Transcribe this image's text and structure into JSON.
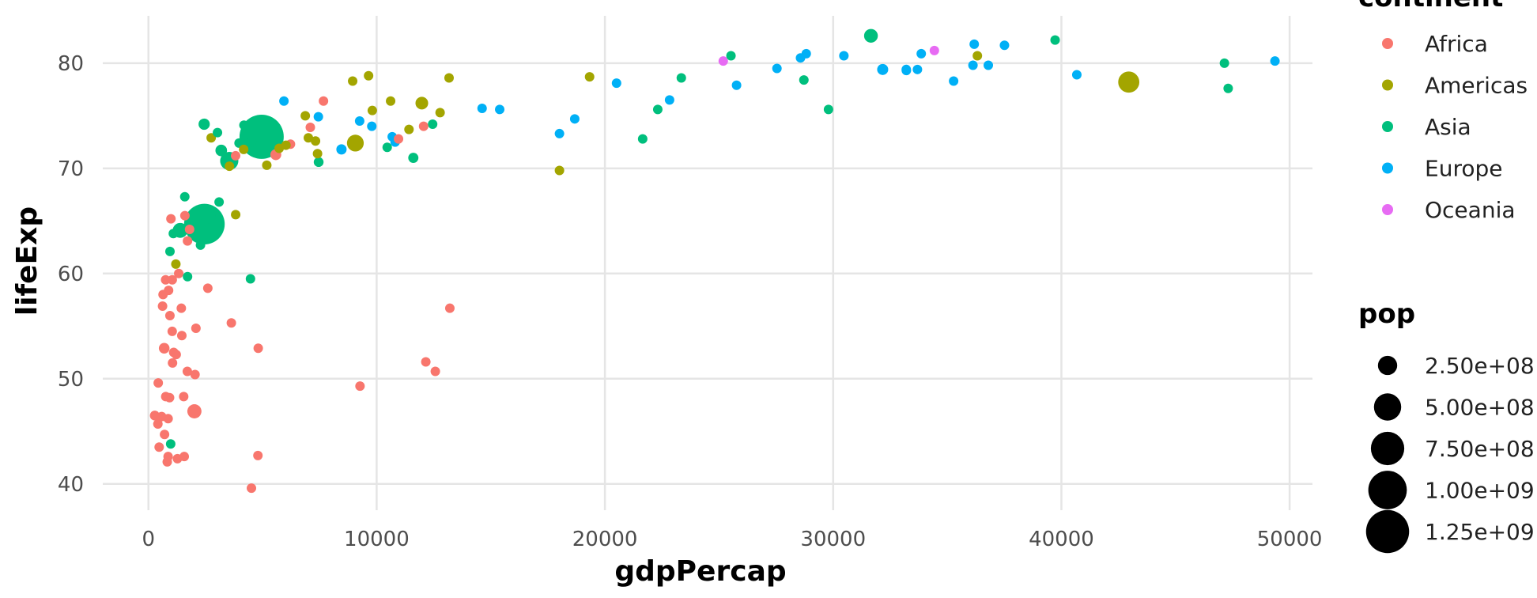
{
  "chart_data": {
    "type": "scatter",
    "xlabel": "gdpPercap",
    "ylabel": "lifeExp",
    "xlim": [
      -2000,
      51000
    ],
    "ylim": [
      37.5,
      84.5
    ],
    "x_ticks": [
      0,
      10000,
      20000,
      30000,
      40000,
      50000
    ],
    "y_ticks": [
      40,
      50,
      60,
      70,
      80
    ],
    "grid": true,
    "legend_position": "right",
    "color_legend": {
      "title": "continent",
      "entries": [
        {
          "name": "Africa",
          "color": "#F8766D"
        },
        {
          "name": "Americas",
          "color": "#A3A500"
        },
        {
          "name": "Asia",
          "color": "#00BF7D"
        },
        {
          "name": "Europe",
          "color": "#00B0F6"
        },
        {
          "name": "Oceania",
          "color": "#E76BF3"
        }
      ]
    },
    "size_legend": {
      "title": "pop",
      "entries": [
        {
          "label": "2.50e+08",
          "value": 250000000
        },
        {
          "label": "5.00e+08",
          "value": 500000000
        },
        {
          "label": "7.50e+08",
          "value": 750000000
        },
        {
          "label": "1.00e+09",
          "value": 1000000000
        },
        {
          "label": "1.25e+09",
          "value": 1250000000
        }
      ]
    },
    "series": [
      {
        "name": "Africa",
        "color": "#F8766D",
        "points": [
          [
            6223,
            72.3,
            33000000
          ],
          [
            4797,
            42.7,
            12400000
          ],
          [
            1441,
            56.7,
            8100000
          ],
          [
            12570,
            50.7,
            1600000
          ],
          [
            1217,
            52.3,
            14300000
          ],
          [
            430,
            49.6,
            8400000
          ],
          [
            2042,
            50.4,
            17700000
          ],
          [
            706,
            44.7,
            4400000
          ],
          [
            1704,
            50.7,
            10200000
          ],
          [
            986,
            65.2,
            700000
          ],
          [
            278,
            46.5,
            64600000
          ],
          [
            3633,
            55.3,
            3800000
          ],
          [
            1545,
            48.3,
            18000000
          ],
          [
            2082,
            54.8,
            500000
          ],
          [
            5581,
            71.3,
            80300000
          ],
          [
            12154,
            51.6,
            600000
          ],
          [
            641,
            58.0,
            4900000
          ],
          [
            691,
            52.9,
            76500000
          ],
          [
            13206,
            56.7,
            1500000
          ],
          [
            753,
            59.4,
            1700000
          ],
          [
            1327,
            60.0,
            22900000
          ],
          [
            942,
            56.0,
            9900000
          ],
          [
            579,
            46.4,
            1500000
          ],
          [
            1463,
            54.1,
            35600000
          ],
          [
            1569,
            42.6,
            2000000
          ],
          [
            415,
            45.7,
            3200000
          ],
          [
            12057,
            74.0,
            6000000
          ],
          [
            1044,
            59.4,
            19200000
          ],
          [
            759,
            48.3,
            13300000
          ],
          [
            1042,
            54.5,
            12000000
          ],
          [
            1803,
            64.2,
            3300000
          ],
          [
            10957,
            72.8,
            1300000
          ],
          [
            3820,
            71.2,
            33800000
          ],
          [
            824,
            42.1,
            19900000
          ],
          [
            4811,
            52.9,
            2100000
          ],
          [
            619,
            56.9,
            12900000
          ],
          [
            2014,
            46.9,
            135000000
          ],
          [
            7670,
            76.4,
            800000
          ],
          [
            863,
            46.2,
            8900000
          ],
          [
            1598,
            65.5,
            200000
          ],
          [
            1712,
            63.1,
            12300000
          ],
          [
            862,
            42.6,
            6100000
          ],
          [
            926,
            48.2,
            9100000
          ],
          [
            9270,
            49.3,
            44000000
          ],
          [
            2602,
            58.6,
            42300000
          ],
          [
            4513,
            39.6,
            1100000
          ],
          [
            1107,
            52.5,
            38100000
          ],
          [
            883,
            58.4,
            5700000
          ],
          [
            7093,
            73.9,
            10300000
          ],
          [
            1056,
            51.5,
            29200000
          ],
          [
            1271,
            42.4,
            11700000
          ],
          [
            470,
            43.5,
            12300000
          ]
        ]
      },
      {
        "name": "Americas",
        "color": "#A3A500",
        "points": [
          [
            12779,
            75.3,
            40300000
          ],
          [
            3822,
            65.6,
            9100000
          ],
          [
            9066,
            72.4,
            190000000
          ],
          [
            36319,
            80.7,
            33400000
          ],
          [
            13172,
            78.6,
            16300000
          ],
          [
            7007,
            72.9,
            44200000
          ],
          [
            9645,
            78.8,
            4100000
          ],
          [
            8948,
            78.3,
            11400000
          ],
          [
            6025,
            72.2,
            9300000
          ],
          [
            6873,
            75.0,
            13800000
          ],
          [
            5728,
            71.9,
            6900000
          ],
          [
            5186,
            70.3,
            12600000
          ],
          [
            1202,
            60.9,
            8500000
          ],
          [
            3548,
            70.2,
            7500000
          ],
          [
            7321,
            72.6,
            2800000
          ],
          [
            11978,
            76.2,
            108700000
          ],
          [
            2749,
            72.9,
            5700000
          ],
          [
            9809,
            75.5,
            3200000
          ],
          [
            4173,
            71.8,
            6700000
          ],
          [
            7409,
            71.4,
            28700000
          ],
          [
            19329,
            78.7,
            3900000
          ],
          [
            18009,
            69.8,
            1100000
          ],
          [
            42952,
            78.2,
            301100000
          ],
          [
            10611,
            76.4,
            3400000
          ],
          [
            11416,
            73.7,
            26100000
          ]
        ]
      },
      {
        "name": "Asia",
        "color": "#00BF7D",
        "points": [
          [
            975,
            43.8,
            31900000
          ],
          [
            29796,
            75.6,
            700000
          ],
          [
            1391,
            64.1,
            150400000
          ],
          [
            1714,
            59.7,
            14100000
          ],
          [
            4959,
            73.0,
            1318700000
          ],
          [
            39725,
            82.2,
            6900000
          ],
          [
            2452,
            64.7,
            1110400000
          ],
          [
            3541,
            70.7,
            223500000
          ],
          [
            11606,
            71.0,
            69500000
          ],
          [
            4471,
            59.5,
            27500000
          ],
          [
            25523,
            80.7,
            6400000
          ],
          [
            31656,
            82.6,
            127500000
          ],
          [
            4519,
            72.5,
            6100000
          ],
          [
            1593,
            67.3,
            23300000
          ],
          [
            23348,
            78.6,
            49000000
          ],
          [
            47307,
            77.6,
            2500000
          ],
          [
            10461,
            72.0,
            3900000
          ],
          [
            12452,
            74.2,
            24800000
          ],
          [
            3096,
            66.8,
            2900000
          ],
          [
            944,
            62.1,
            47800000
          ],
          [
            1091,
            63.8,
            28900000
          ],
          [
            22316,
            75.6,
            3200000
          ],
          [
            2606,
            65.5,
            169300000
          ],
          [
            3190,
            71.7,
            91100000
          ],
          [
            21655,
            72.8,
            27600000
          ],
          [
            47143,
            80.0,
            4600000
          ],
          [
            3970,
            72.4,
            20400000
          ],
          [
            4185,
            74.1,
            19300000
          ],
          [
            28718,
            78.4,
            23200000
          ],
          [
            7458,
            70.6,
            65100000
          ],
          [
            2442,
            74.2,
            85300000
          ],
          [
            3025,
            73.4,
            4000000
          ],
          [
            2281,
            62.7,
            22200000
          ]
        ]
      },
      {
        "name": "Europe",
        "color": "#00B0F6",
        "points": [
          [
            5937,
            76.4,
            3600000
          ],
          [
            36126,
            79.8,
            8200000
          ],
          [
            33693,
            79.4,
            10400000
          ],
          [
            7446,
            74.9,
            4600000
          ],
          [
            10681,
            73.0,
            7300000
          ],
          [
            14619,
            75.7,
            4500000
          ],
          [
            22833,
            76.5,
            10200000
          ],
          [
            35278,
            78.3,
            5500000
          ],
          [
            33207,
            79.3,
            5200000
          ],
          [
            30470,
            80.7,
            61100000
          ],
          [
            32170,
            79.4,
            82400000
          ],
          [
            27538,
            79.5,
            10700000
          ],
          [
            18009,
            73.3,
            10000000
          ],
          [
            36181,
            81.8,
            300000
          ],
          [
            40676,
            78.9,
            4100000
          ],
          [
            28570,
            80.5,
            58100000
          ],
          [
            9254,
            74.5,
            700000
          ],
          [
            36798,
            79.8,
            16600000
          ],
          [
            49357,
            80.2,
            4600000
          ],
          [
            15390,
            75.6,
            38500000
          ],
          [
            20510,
            78.1,
            10600000
          ],
          [
            10808,
            72.5,
            22300000
          ],
          [
            9787,
            74.0,
            10200000
          ],
          [
            18678,
            74.7,
            5400000
          ],
          [
            25768,
            77.9,
            2000000
          ],
          [
            28821,
            80.9,
            40400000
          ],
          [
            33860,
            80.9,
            9000000
          ],
          [
            37506,
            81.7,
            7600000
          ],
          [
            8458,
            71.8,
            71200000
          ],
          [
            33203,
            79.4,
            60800000
          ]
        ]
      },
      {
        "name": "Oceania",
        "color": "#E76BF3",
        "points": [
          [
            34435,
            81.2,
            20400000
          ],
          [
            25185,
            80.2,
            4100000
          ]
        ]
      }
    ]
  }
}
